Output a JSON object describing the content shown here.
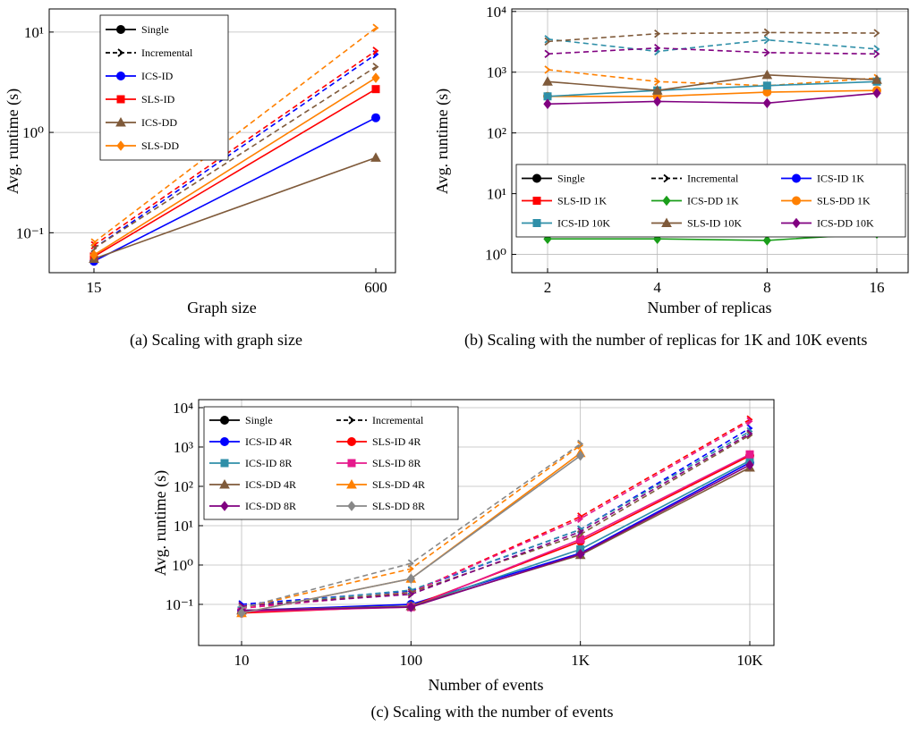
{
  "chart_data": [
    {
      "type": "line",
      "log_y": true,
      "grid": true,
      "xgrid": false,
      "caption": "(a) Scaling with graph size",
      "xlabel": "Graph size",
      "ylabel": "Avg. runtime (s)",
      "categories": [
        "15",
        "600"
      ],
      "ylim": [
        0.04,
        17
      ],
      "yticks": [
        {
          "value": 0.1,
          "label": "10⁻¹"
        },
        {
          "value": 1,
          "label": "10⁰"
        },
        {
          "value": 10,
          "label": "10¹"
        }
      ],
      "line_styles": [
        {
          "label": "Single",
          "dash": "solid"
        },
        {
          "label": "Incremental",
          "dash": "dashed"
        }
      ],
      "series": [
        {
          "name": "ICS-ID",
          "color": "#0000ff",
          "marker": "circle",
          "values": [
            0.052,
            1.4
          ],
          "incremental": [
            0.07,
            6
          ]
        },
        {
          "name": "SLS-ID",
          "color": "#ff0000",
          "marker": "square",
          "values": [
            0.058,
            2.7
          ],
          "incremental": [
            0.075,
            6.5
          ]
        },
        {
          "name": "ICS-DD",
          "color": "#7f5a3a",
          "marker": "triangle",
          "values": [
            0.055,
            0.56
          ],
          "incremental": [
            0.07,
            4.5
          ]
        },
        {
          "name": "SLS-DD",
          "color": "#ff8000",
          "marker": "diamond",
          "values": [
            0.06,
            3.5
          ],
          "incremental": [
            0.08,
            11
          ]
        }
      ]
    },
    {
      "type": "line",
      "log_y": true,
      "grid": true,
      "xgrid": true,
      "caption": "(b) Scaling with the number of replicas for 1K and 10K events",
      "xlabel": "Number of replicas",
      "ylabel": "Avg. runtime (s)",
      "categories": [
        "2",
        "4",
        "8",
        "16"
      ],
      "ylim": [
        0.5,
        11000
      ],
      "yticks": [
        {
          "value": 1,
          "label": "10⁰"
        },
        {
          "value": 10,
          "label": "10¹"
        },
        {
          "value": 100,
          "label": "10²"
        },
        {
          "value": 1000,
          "label": "10³"
        },
        {
          "value": 10000,
          "label": "10⁴"
        }
      ],
      "line_styles": [
        {
          "label": "Single",
          "dash": "solid"
        },
        {
          "label": "Incremental",
          "dash": "dashed"
        }
      ],
      "series": [
        {
          "name": "ICS-ID 1K",
          "color": "#0000ff",
          "marker": "circle",
          "values": [
            2.2,
            2.5,
            2.7,
            3.6
          ],
          "incremental": [
            11,
            7,
            6.5,
            6.5
          ]
        },
        {
          "name": "SLS-ID 1K",
          "color": "#ff0000",
          "marker": "square",
          "values": [
            4,
            2.7,
            4.7,
            3.5
          ],
          "incremental": [
            14,
            13,
            10,
            13
          ]
        },
        {
          "name": "ICS-DD 1K",
          "color": "#1a9e1a",
          "marker": "diamond",
          "values": [
            1.8,
            1.8,
            1.7,
            2.2
          ],
          "incremental": [
            6.5,
            5.8,
            5.5,
            5.5
          ]
        },
        {
          "name": "SLS-DD 1K",
          "color": "#ff8000",
          "marker": "circle",
          "values": [
            400,
            400,
            470,
            500
          ],
          "incremental": [
            1100,
            700,
            600,
            800
          ]
        },
        {
          "name": "ICS-ID 10K",
          "color": "#2f8fa8",
          "marker": "square",
          "values": [
            400,
            500,
            600,
            700
          ],
          "incremental": [
            3500,
            2200,
            3400,
            2400
          ]
        },
        {
          "name": "SLS-ID 10K",
          "color": "#7f5a3a",
          "marker": "triangle",
          "values": [
            700,
            500,
            900,
            750
          ],
          "incremental": [
            3200,
            4300,
            4500,
            4400
          ]
        },
        {
          "name": "ICS-DD 10K",
          "color": "#800080",
          "marker": "diamond",
          "values": [
            300,
            330,
            310,
            450
          ],
          "incremental": [
            2000,
            2500,
            2100,
            2000
          ]
        }
      ]
    },
    {
      "type": "line",
      "log_y": true,
      "grid": true,
      "xgrid": true,
      "caption": "(c) Scaling with the number of events",
      "xlabel": "Number of events",
      "ylabel": "Avg. runtime (s)",
      "categories": [
        "10",
        "100",
        "1K",
        "10K"
      ],
      "ylim": [
        0.009,
        16000
      ],
      "yticks": [
        {
          "value": 0.1,
          "label": "10⁻¹"
        },
        {
          "value": 1,
          "label": "10⁰"
        },
        {
          "value": 10,
          "label": "10¹"
        },
        {
          "value": 100,
          "label": "10²"
        },
        {
          "value": 1000,
          "label": "10³"
        },
        {
          "value": 10000,
          "label": "10⁴"
        }
      ],
      "line_styles": [
        {
          "label": "Single",
          "dash": "solid"
        },
        {
          "label": "Incremental",
          "dash": "dashed"
        }
      ],
      "series": [
        {
          "name": "ICS-ID 4R",
          "color": "#0000ff",
          "marker": "circle",
          "values": [
            0.07,
            0.1,
            2,
            400
          ],
          "incremental": [
            0.1,
            0.22,
            8,
            3000
          ]
        },
        {
          "name": "SLS-ID 4R",
          "color": "#ff0000",
          "marker": "circle",
          "values": [
            0.06,
            0.09,
            4,
            600
          ],
          "incremental": [
            0.08,
            0.2,
            17,
            5000
          ]
        },
        {
          "name": "ICS-ID 8R",
          "color": "#2f8fa8",
          "marker": "square",
          "values": [
            0.07,
            0.09,
            2.5,
            450
          ],
          "incremental": [
            0.09,
            0.23,
            8,
            2500
          ]
        },
        {
          "name": "SLS-ID 8R",
          "color": "#e6198c",
          "marker": "square",
          "values": [
            0.065,
            0.085,
            4.5,
            650
          ],
          "incremental": [
            0.08,
            0.2,
            15,
            4500
          ]
        },
        {
          "name": "ICS-DD 4R",
          "color": "#7f5a3a",
          "marker": "triangle",
          "values": [
            0.07,
            0.09,
            1.8,
            300
          ],
          "incremental": [
            0.09,
            0.2,
            6,
            2000
          ]
        },
        {
          "name": "SLS-DD 4R",
          "color": "#ff8000",
          "marker": "triangle",
          "values": [
            0.06,
            0.45,
            700,
            null
          ],
          "incremental": [
            0.08,
            0.8,
            1100,
            null
          ]
        },
        {
          "name": "ICS-DD 8R",
          "color": "#800080",
          "marker": "diamond",
          "values": [
            0.07,
            0.085,
            1.9,
            350
          ],
          "incremental": [
            0.09,
            0.18,
            7,
            2200
          ]
        },
        {
          "name": "SLS-DD 8R",
          "color": "#888888",
          "marker": "diamond",
          "values": [
            0.06,
            0.45,
            600,
            null
          ],
          "incremental": [
            0.08,
            1.1,
            1200,
            null
          ]
        }
      ]
    }
  ]
}
